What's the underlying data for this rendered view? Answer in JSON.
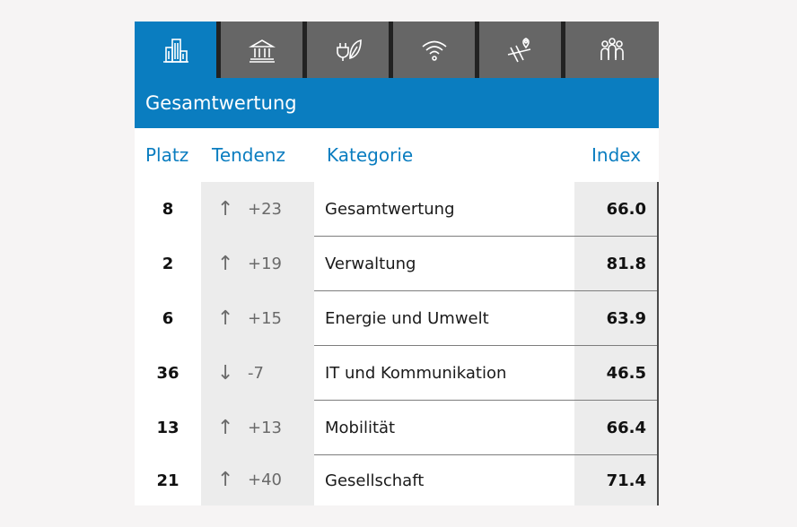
{
  "tabs": [
    {
      "icon": "city-buildings-icon",
      "active": true
    },
    {
      "icon": "government-building-icon",
      "active": false
    },
    {
      "icon": "plug-leaf-icon",
      "active": false
    },
    {
      "icon": "wifi-icon",
      "active": false
    },
    {
      "icon": "map-pin-roads-icon",
      "active": false
    },
    {
      "icon": "people-group-icon",
      "active": false
    }
  ],
  "title": "Gesamtwertung",
  "headers": {
    "platz": "Platz",
    "tendenz": "Tendenz",
    "kategorie": "Kategorie",
    "index": "Index"
  },
  "rows": [
    {
      "platz": "8",
      "arrow": "↑",
      "delta": "+23",
      "kategorie": "Gesamtwertung",
      "index": "66.0"
    },
    {
      "platz": "2",
      "arrow": "↑",
      "delta": "+19",
      "kategorie": "Verwaltung",
      "index": "81.8"
    },
    {
      "platz": "6",
      "arrow": "↑",
      "delta": "+15",
      "kategorie": "Energie und Umwelt",
      "index": "63.9"
    },
    {
      "platz": "36",
      "arrow": "↓",
      "delta": "-7",
      "kategorie": "IT und Kommunikation",
      "index": "46.5"
    },
    {
      "platz": "13",
      "arrow": "↑",
      "delta": "+13",
      "kategorie": "Mobilität",
      "index": "66.4"
    },
    {
      "platz": "21",
      "arrow": "↑",
      "delta": "+40",
      "kategorie": "Gesellschaft",
      "index": "71.4"
    }
  ],
  "colors": {
    "accent": "#0a7dc0",
    "tab_bg": "#666666",
    "cell_gray": "#ececec"
  }
}
